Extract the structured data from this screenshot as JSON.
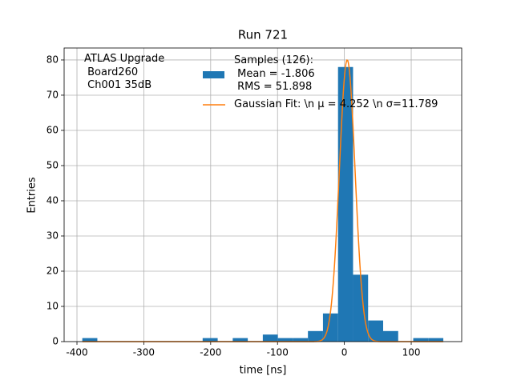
{
  "chart_data": {
    "type": "histogram",
    "title": "Run 721",
    "x_label": "time [ns]",
    "y_label": "Entries",
    "bins": [
      -392,
      -369.5,
      -347,
      -324.5,
      -302,
      -279.5,
      -257,
      -234.5,
      -212,
      -189.5,
      -167,
      -144.5,
      -122,
      -99.5,
      -77,
      -54.5,
      -32,
      -9.5,
      13,
      35.5,
      58,
      80.5,
      103,
      125.5,
      148
    ],
    "series": [
      {
        "name": "Samples (126):\n Mean = -1.806\n RMS = 51.898",
        "color": "#1f77b4",
        "values": [
          1,
          0,
          0,
          0,
          0,
          0,
          0,
          0,
          1,
          0,
          1,
          0,
          2,
          1,
          1,
          3,
          8,
          78,
          19,
          6,
          3,
          0,
          1,
          1
        ]
      }
    ],
    "fit": {
      "name": "Gaussian Fit: \\n μ = 4.252 \\n σ=11.789",
      "color": "#ff7f0e",
      "amplitude": 80,
      "mu": 4.252,
      "sigma": 11.789
    },
    "annotation": "ATLAS Upgrade\n Board260\n Ch001 35dB",
    "xlim": [
      -419.2,
      175.5
    ],
    "ylim": [
      0,
      83.4
    ],
    "xticks": [
      -400,
      -300,
      -200,
      -100,
      0,
      100
    ],
    "yticks": [
      0,
      10,
      20,
      30,
      40,
      50,
      60,
      70,
      80
    ],
    "grid": true
  }
}
